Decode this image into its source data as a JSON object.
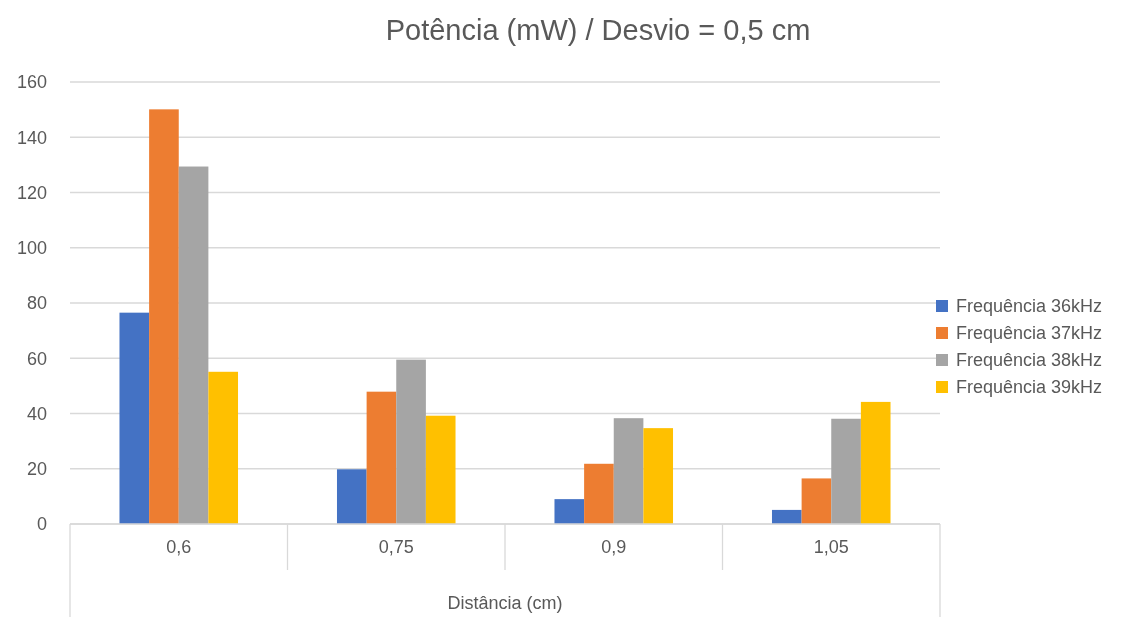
{
  "chart_data": {
    "type": "bar",
    "title": "Potência (mW) / Desvio = 0,5 cm",
    "xlabel": "Distância (cm)",
    "categories": [
      "0,6",
      "0,75",
      "0,9",
      "1,05"
    ],
    "series": [
      {
        "name": "Frequência 36kHz",
        "color": "#4472c4",
        "values": [
          76.5,
          19.8,
          9.0,
          5.1
        ]
      },
      {
        "name": "Frequência 37kHz",
        "color": "#ed7d31",
        "values": [
          150.1,
          47.9,
          21.8,
          16.5
        ]
      },
      {
        "name": "Frequência 38kHz",
        "color": "#a5a5a5",
        "values": [
          129.4,
          59.5,
          38.3,
          38.1
        ]
      },
      {
        "name": "Frequência 39kHz",
        "color": "#ffc000",
        "values": [
          55.1,
          39.2,
          34.7,
          44.2
        ]
      }
    ],
    "ylim": [
      0,
      160
    ],
    "yticks": [
      0,
      20,
      40,
      60,
      80,
      100,
      120,
      140,
      160
    ],
    "grid": "y",
    "legend": "right"
  }
}
